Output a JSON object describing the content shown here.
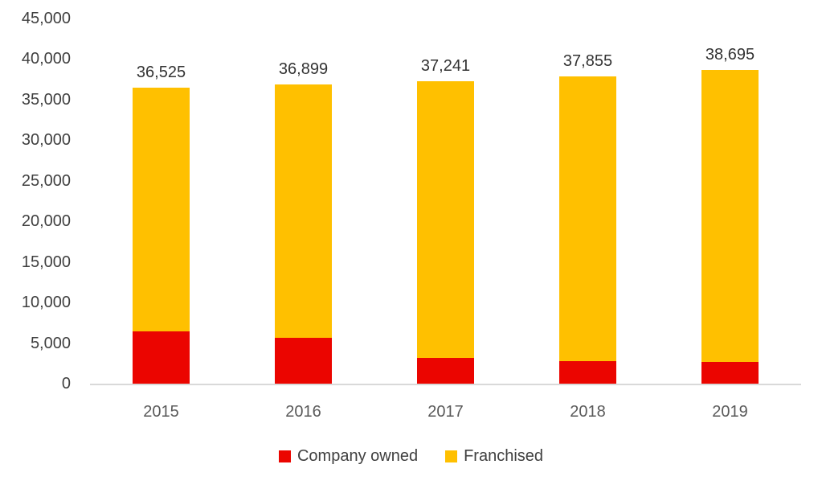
{
  "colors": {
    "company_owned": "#EB0500",
    "franchised": "#FFC000",
    "axis_line": "#D9D9D9",
    "y_tick_label": "#404040",
    "x_tick_label": "#595959",
    "data_label": "#333333",
    "background": "#FFFFFF"
  },
  "legend": {
    "items": [
      {
        "label": "Company owned",
        "color": "#EB0500"
      },
      {
        "label": "Franchised",
        "color": "#FFC000"
      }
    ],
    "position": "bottom"
  },
  "chart_data": {
    "type": "bar",
    "stacked": true,
    "title": "",
    "xlabel": "",
    "ylabel": "",
    "grid": false,
    "categories": [
      "2015",
      "2016",
      "2017",
      "2018",
      "2019"
    ],
    "series": [
      {
        "name": "Company owned",
        "color": "#EB0500",
        "values": [
          6444,
          5669,
          3133,
          2770,
          2636
        ]
      },
      {
        "name": "Franchised",
        "color": "#FFC000",
        "values": [
          30081,
          31230,
          34108,
          35085,
          36059
        ]
      }
    ],
    "totals": [
      36525,
      36899,
      37241,
      37855,
      38695
    ],
    "total_labels": [
      "36,525",
      "36,899",
      "37,241",
      "37,855",
      "38,695"
    ],
    "ylim": [
      0,
      45000
    ],
    "y_ticks": [
      0,
      5000,
      10000,
      15000,
      20000,
      25000,
      30000,
      35000,
      40000,
      45000
    ],
    "y_tick_labels": [
      "0",
      "5,000",
      "10,000",
      "15,000",
      "20,000",
      "25,000",
      "30,000",
      "35,000",
      "40,000",
      "45,000"
    ]
  }
}
